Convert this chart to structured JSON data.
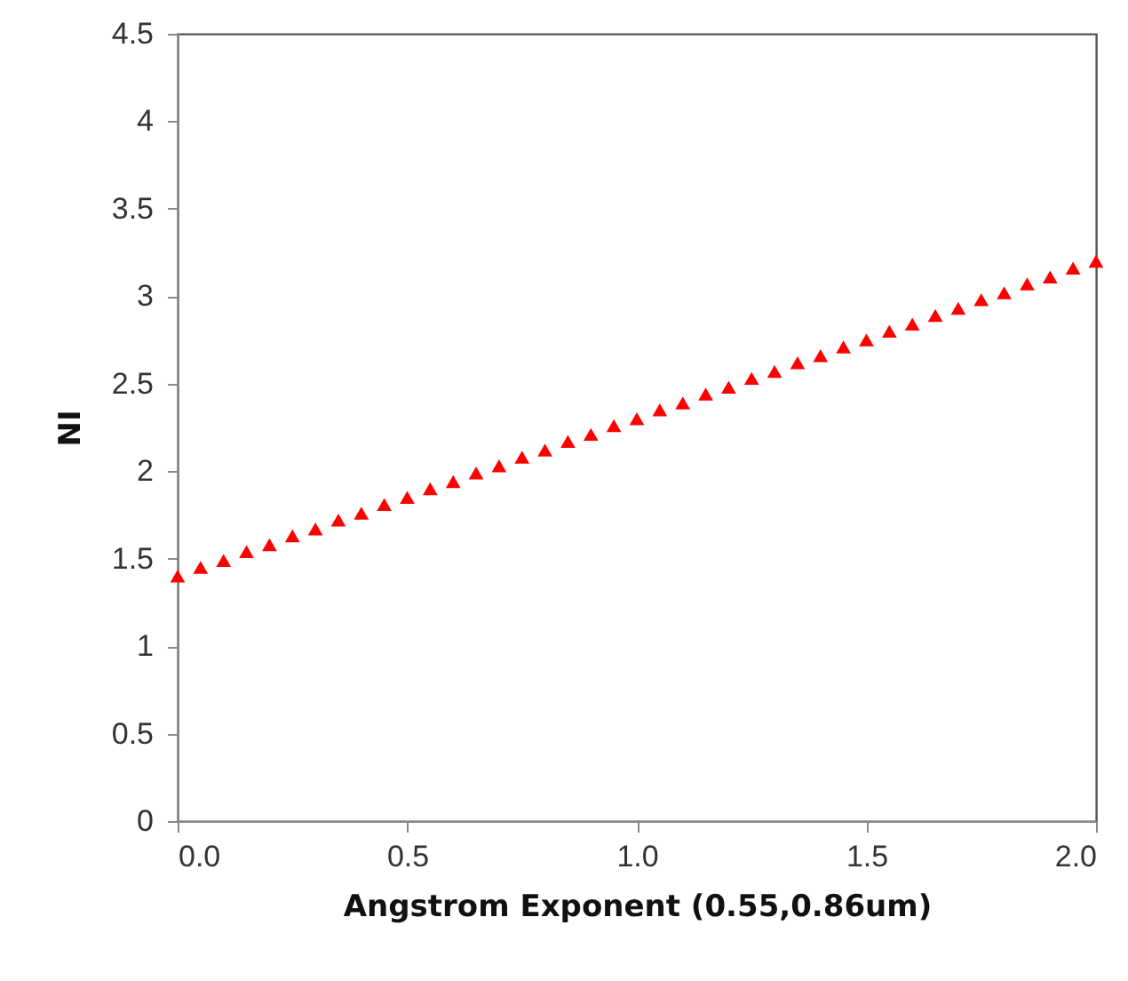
{
  "chart_data": {
    "type": "scatter",
    "xlabel": "Angstrom Exponent (0.55,0.86um)",
    "ylabel": "NI",
    "x": [
      0,
      0.05,
      0.1,
      0.15,
      0.2,
      0.25,
      0.3,
      0.35,
      0.4,
      0.45,
      0.5,
      0.55,
      0.6,
      0.65,
      0.7,
      0.75,
      0.8,
      0.85,
      0.9,
      0.95,
      1,
      1.05,
      1.1,
      1.15,
      1.2,
      1.25,
      1.3,
      1.35,
      1.4,
      1.45,
      1.5,
      1.55,
      1.6,
      1.65,
      1.7,
      1.75,
      1.8,
      1.85,
      1.9,
      1.95,
      2
    ],
    "series": [
      {
        "color": "#ff0000",
        "values": [
          1.4,
          1.45,
          1.49,
          1.54,
          1.58,
          1.63,
          1.67,
          1.72,
          1.76,
          1.81,
          1.85,
          1.9,
          1.94,
          1.99,
          2.03,
          2.08,
          2.12,
          2.17,
          2.21,
          2.26,
          2.3,
          2.35,
          2.39,
          2.44,
          2.48,
          2.53,
          2.57,
          2.62,
          2.66,
          2.71,
          2.75,
          2.8,
          2.84,
          2.89,
          2.93,
          2.98,
          3.02,
          3.07,
          3.11,
          3.16,
          3.2
        ]
      }
    ],
    "xlim": [
      0,
      2
    ],
    "xticks": [
      {
        "value": 0,
        "label": "0.0"
      },
      {
        "value": 0.5,
        "label": "0.5"
      },
      {
        "value": 1,
        "label": "1.0"
      },
      {
        "value": 1.5,
        "label": "1.5"
      },
      {
        "value": 2,
        "label": "2.0"
      }
    ],
    "ylim": [
      0,
      4.5
    ],
    "yticks": [
      0,
      0.5,
      1,
      1.5,
      2,
      2.5,
      3,
      3.5,
      4,
      4.5
    ],
    "marker": "triangle",
    "grid": false,
    "legend": false
  }
}
